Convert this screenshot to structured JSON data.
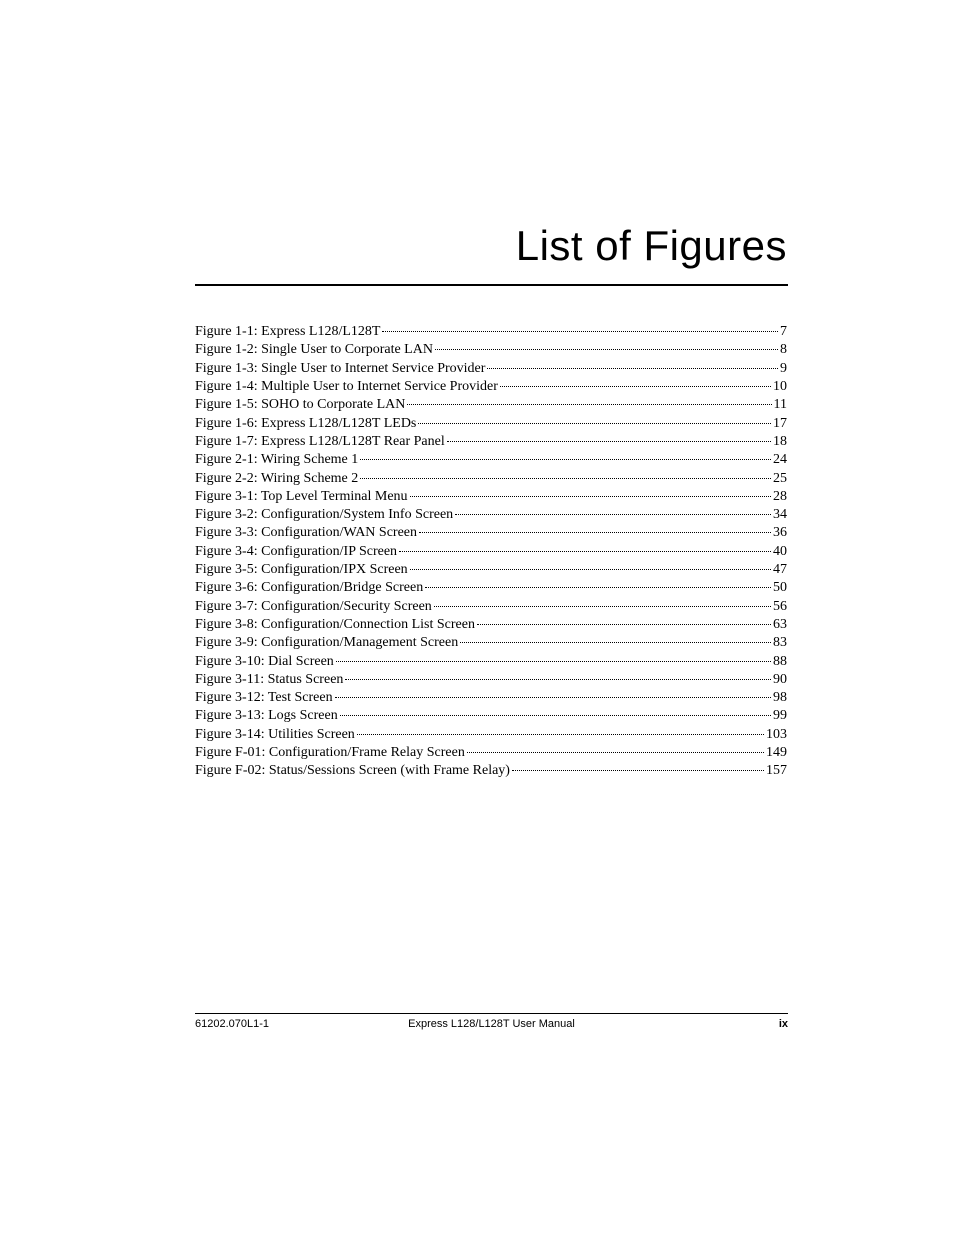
{
  "title": "List of Figures",
  "toc": {
    "entries": [
      {
        "label": "Figure 1-1: Express L128/L128T",
        "page": "7"
      },
      {
        "label": "Figure 1-2: Single User to Corporate LAN",
        "page": "8"
      },
      {
        "label": "Figure 1-3: Single User to Internet Service Provider",
        "page": "9"
      },
      {
        "label": "Figure 1-4: Multiple User to Internet Service Provider",
        "page": "10"
      },
      {
        "label": "Figure 1-5: SOHO to Corporate LAN",
        "page": "11"
      },
      {
        "label": "Figure 1-6: Express L128/L128T LEDs",
        "page": "17"
      },
      {
        "label": "Figure 1-7: Express L128/L128T Rear Panel",
        "page": "18"
      },
      {
        "label": "Figure 2-1: Wiring Scheme 1",
        "page": "24"
      },
      {
        "label": "Figure 2-2: Wiring Scheme 2",
        "page": "25"
      },
      {
        "label": "Figure 3-1: Top Level Terminal Menu",
        "page": "28"
      },
      {
        "label": "Figure 3-2: Configuration/System Info Screen",
        "page": "34"
      },
      {
        "label": "Figure 3-3: Configuration/WAN Screen",
        "page": "36"
      },
      {
        "label": "Figure 3-4: Configuration/IP Screen",
        "page": "40"
      },
      {
        "label": "Figure 3-5: Configuration/IPX Screen",
        "page": "47"
      },
      {
        "label": "Figure 3-6: Configuration/Bridge Screen",
        "page": "50"
      },
      {
        "label": "Figure 3-7: Configuration/Security Screen",
        "page": "56"
      },
      {
        "label": "Figure 3-8: Configuration/Connection List Screen",
        "page": "63"
      },
      {
        "label": "Figure 3-9: Configuration/Management Screen",
        "page": "83"
      },
      {
        "label": "Figure 3-10: Dial Screen",
        "page": "88"
      },
      {
        "label": "Figure 3-11: Status Screen",
        "page": "90"
      },
      {
        "label": "Figure 3-12: Test Screen",
        "page": "98"
      },
      {
        "label": "Figure 3-13: Logs Screen",
        "page": "99"
      },
      {
        "label": "Figure 3-14: Utilities Screen",
        "page": "103"
      },
      {
        "label": "Figure F-01: Configuration/Frame Relay Screen",
        "page": "149"
      },
      {
        "label": "Figure F-02: Status/Sessions Screen (with Frame Relay)",
        "page": "157"
      }
    ]
  },
  "footer": {
    "left": "61202.070L1-1",
    "center": "Express L128/L128T User Manual",
    "right": "ix"
  }
}
